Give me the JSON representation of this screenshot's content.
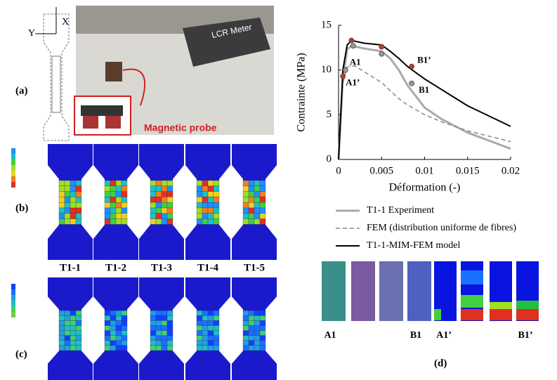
{
  "panels": {
    "a": {
      "label": "(a)",
      "axis_y": "Y",
      "axis_x": "X",
      "device": "LCR Meter",
      "probe": "Magnetic probe"
    },
    "b": {
      "label": "(b)"
    },
    "c": {
      "label": "(c)",
      "specimens": [
        "T1-1",
        "T1-2",
        "T1-3",
        "T1-4",
        "T1-5"
      ]
    },
    "d": {
      "label": "(d)",
      "images": [
        "A1",
        "B1",
        "A1’",
        "B1’"
      ]
    }
  },
  "chart_data": {
    "type": "line",
    "xlabel": "Déformation (-)",
    "ylabel": "Contrainte (MPa)",
    "xlim": [
      0,
      0.02
    ],
    "ylim": [
      0,
      15
    ],
    "xticks": [
      0,
      0.005,
      0.01,
      0.015,
      0.02
    ],
    "yticks": [
      0,
      5,
      10,
      15
    ],
    "x": [
      0,
      0.0005,
      0.001,
      0.0015,
      0.002,
      0.003,
      0.005,
      0.006,
      0.007,
      0.008,
      0.01,
      0.012,
      0.015,
      0.02
    ],
    "series": [
      {
        "name": "T1-1 Experiment",
        "color": "#aaaaaa",
        "width": 3,
        "dashed": false,
        "values": [
          0,
          9,
          12.3,
          12.7,
          12.6,
          12.4,
          12.1,
          11.3,
          10,
          8.3,
          5.8,
          4.5,
          3,
          1.2
        ]
      },
      {
        "name": "FEM (distribution uniforme de fibres)",
        "color": "#888888",
        "width": 1.5,
        "dashed": true,
        "values": [
          0,
          8.5,
          10.3,
          10.5,
          10.4,
          9.8,
          8.6,
          7.7,
          6.8,
          6.1,
          5,
          4.2,
          3.2,
          2
        ]
      },
      {
        "name": "T1-1-MIM-FEM model",
        "color": "#000000",
        "width": 2,
        "dashed": false,
        "values": [
          0,
          10,
          12.8,
          13.3,
          13.2,
          13,
          12.8,
          12.1,
          11.3,
          10.4,
          9,
          7.8,
          6,
          3.7
        ]
      }
    ],
    "points": [
      {
        "x": 0.0008,
        "y": 10,
        "color": "#999999",
        "label": "A1"
      },
      {
        "x": 0.0005,
        "y": 9.3,
        "color": "#c0392b",
        "label": "A1’"
      },
      {
        "x": 0.0085,
        "y": 10.4,
        "color": "#c0392b",
        "label": "B1’"
      },
      {
        "x": 0.0085,
        "y": 8.5,
        "color": "#999999",
        "label": "B1"
      },
      {
        "x": 0.0015,
        "y": 13.3,
        "color": "#c0392b"
      },
      {
        "x": 0.005,
        "y": 12.6,
        "color": "#c0392b"
      },
      {
        "x": 0.0017,
        "y": 12.7,
        "color": "#999999"
      },
      {
        "x": 0.005,
        "y": 11.8,
        "color": "#999999"
      }
    ]
  }
}
